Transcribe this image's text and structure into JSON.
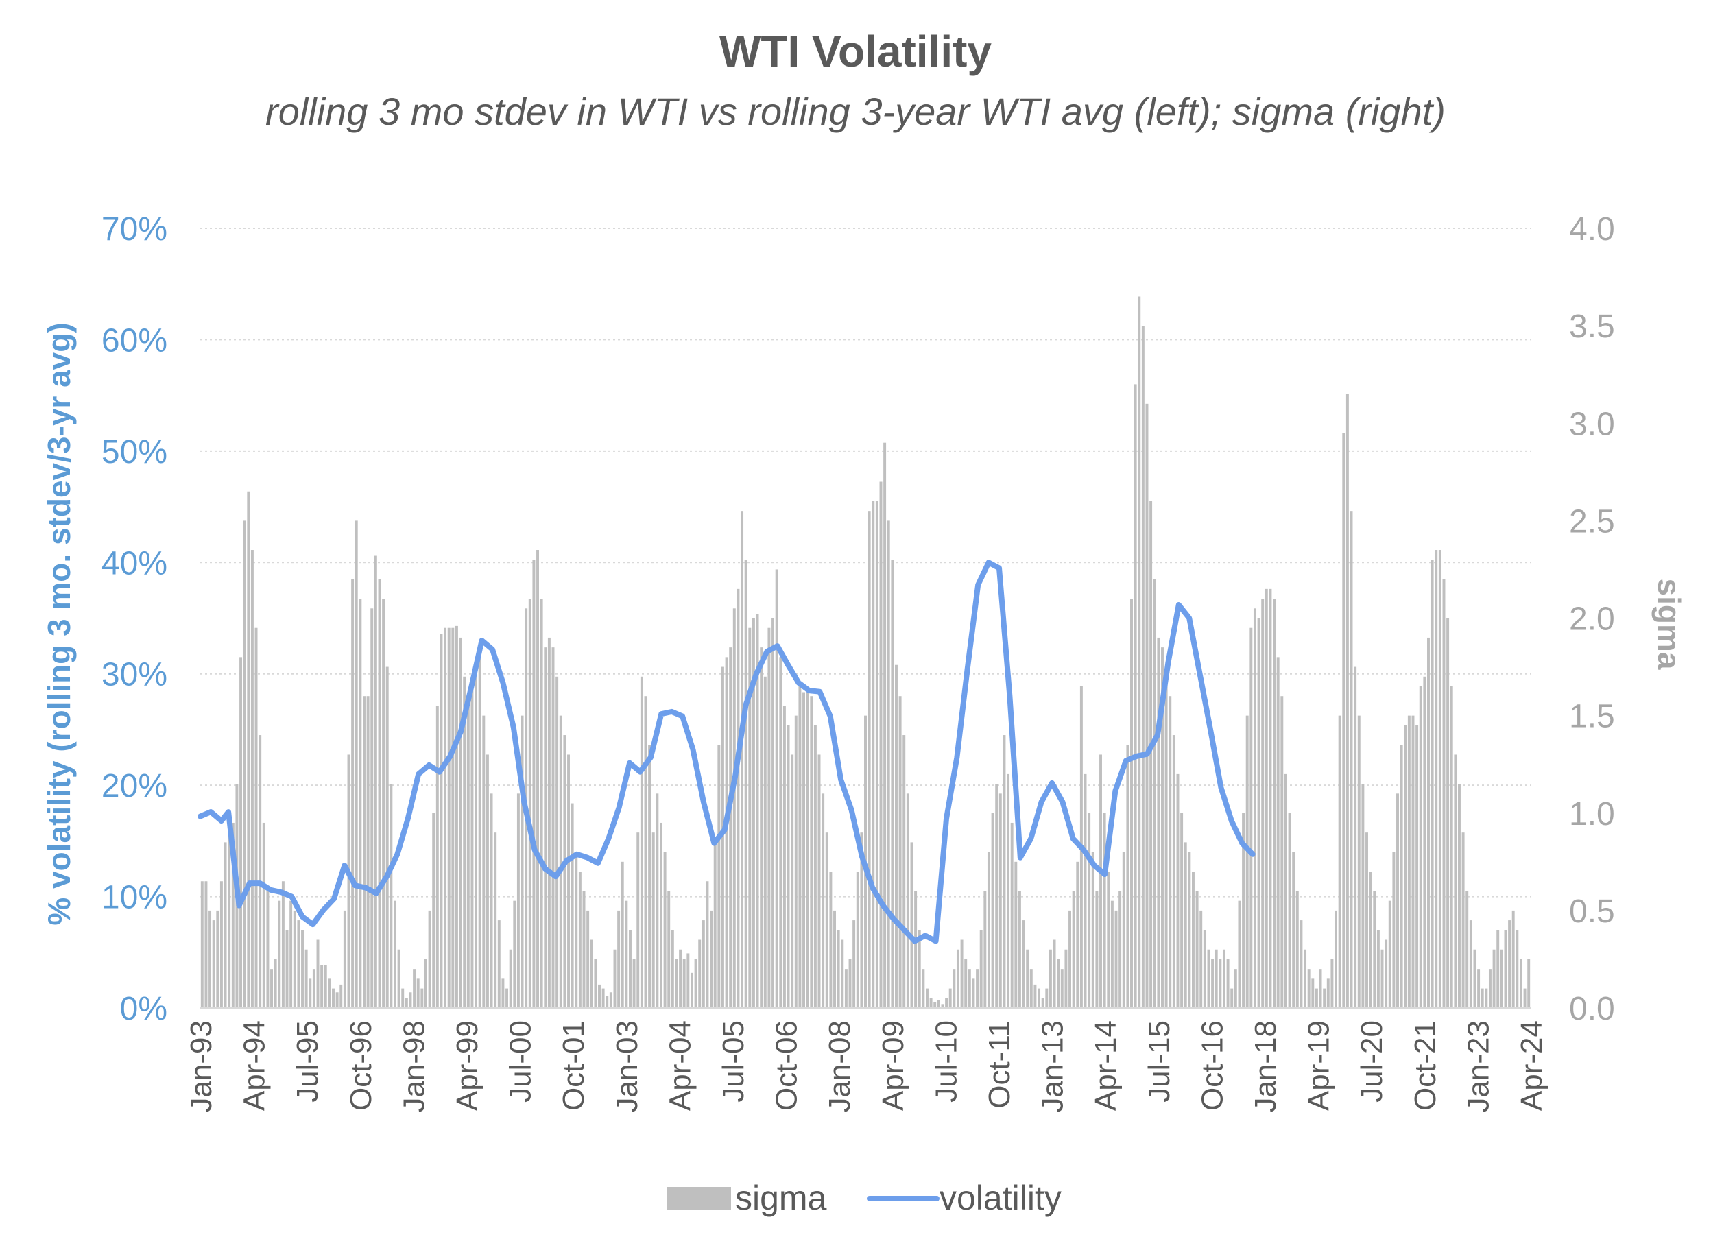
{
  "chart_data": {
    "type": "bar+line",
    "title": "WTI Volatility",
    "subtitle": "rolling 3 mo stdev in WTI vs rolling 3-year WTI avg (left); sigma (right)",
    "ylabel_left": "% volatility (rolling 3 mo. stdev/3-yr avg)",
    "ylabel_right": "sigma",
    "ylim_left": [
      0,
      0.7
    ],
    "ylim_right": [
      0,
      4.0
    ],
    "yticks_left": [
      "0%",
      "10%",
      "20%",
      "30%",
      "40%",
      "50%",
      "60%",
      "70%"
    ],
    "yticks_right": [
      "0.0",
      "0.5",
      "1.0",
      "1.5",
      "2.0",
      "2.5",
      "3.0",
      "3.5",
      "4.0"
    ],
    "x_start": "1993-01",
    "x_end": "2024-07",
    "xticks": [
      "Jan-93",
      "Apr-94",
      "Jul-95",
      "Oct-96",
      "Jan-98",
      "Apr-99",
      "Jul-00",
      "Oct-01",
      "Jan-03",
      "Apr-04",
      "Jul-05",
      "Oct-06",
      "Jan-08",
      "Apr-09",
      "Jul-10",
      "Oct-11",
      "Jan-13",
      "Apr-14",
      "Jul-15",
      "Oct-16",
      "Jan-18",
      "Apr-19",
      "Jul-20",
      "Oct-21",
      "Jan-23",
      "Apr-24"
    ],
    "grid": true,
    "legend_position": "bottom",
    "colors": {
      "sigma": "#bfbfbf",
      "volatility": "#6d9eeb",
      "left_axis": "#5b9bd5",
      "right_axis": "#a6a6a6",
      "title": "#595959"
    },
    "series": [
      {
        "name": "volatility",
        "type": "line",
        "axis": "left",
        "points": [
          [
            "1993-01",
            0.172
          ],
          [
            "1993-04",
            0.176
          ],
          [
            "1993-07",
            0.168
          ],
          [
            "1993-09",
            0.176
          ],
          [
            "1993-12",
            0.092
          ],
          [
            "1994-03",
            0.112
          ],
          [
            "1994-06",
            0.112
          ],
          [
            "1994-09",
            0.106
          ],
          [
            "1994-12",
            0.104
          ],
          [
            "1995-03",
            0.1
          ],
          [
            "1995-06",
            0.082
          ],
          [
            "1995-09",
            0.075
          ],
          [
            "1995-12",
            0.088
          ],
          [
            "1996-03",
            0.098
          ],
          [
            "1996-06",
            0.128
          ],
          [
            "1996-09",
            0.11
          ],
          [
            "1996-12",
            0.108
          ],
          [
            "1997-03",
            0.103
          ],
          [
            "1997-06",
            0.118
          ],
          [
            "1997-09",
            0.138
          ],
          [
            "1997-12",
            0.17
          ],
          [
            "1998-03",
            0.21
          ],
          [
            "1998-06",
            0.218
          ],
          [
            "1998-09",
            0.212
          ],
          [
            "1998-12",
            0.226
          ],
          [
            "1999-03",
            0.248
          ],
          [
            "1999-06",
            0.288
          ],
          [
            "1999-09",
            0.33
          ],
          [
            "1999-12",
            0.322
          ],
          [
            "2000-03",
            0.292
          ],
          [
            "2000-06",
            0.252
          ],
          [
            "2000-09",
            0.185
          ],
          [
            "2000-12",
            0.142
          ],
          [
            "2001-03",
            0.125
          ],
          [
            "2001-06",
            0.118
          ],
          [
            "2001-09",
            0.132
          ],
          [
            "2001-12",
            0.138
          ],
          [
            "2002-03",
            0.135
          ],
          [
            "2002-06",
            0.13
          ],
          [
            "2002-09",
            0.152
          ],
          [
            "2002-12",
            0.18
          ],
          [
            "2003-03",
            0.22
          ],
          [
            "2003-06",
            0.212
          ],
          [
            "2003-09",
            0.225
          ],
          [
            "2003-12",
            0.264
          ],
          [
            "2004-03",
            0.266
          ],
          [
            "2004-06",
            0.262
          ],
          [
            "2004-09",
            0.232
          ],
          [
            "2004-12",
            0.185
          ],
          [
            "2005-03",
            0.148
          ],
          [
            "2005-06",
            0.16
          ],
          [
            "2005-09",
            0.208
          ],
          [
            "2005-12",
            0.272
          ],
          [
            "2006-03",
            0.3
          ],
          [
            "2006-06",
            0.32
          ],
          [
            "2006-09",
            0.325
          ],
          [
            "2006-12",
            0.308
          ],
          [
            "2007-03",
            0.292
          ],
          [
            "2007-06",
            0.285
          ],
          [
            "2007-09",
            0.284
          ],
          [
            "2007-12",
            0.262
          ],
          [
            "2008-03",
            0.205
          ],
          [
            "2008-06",
            0.178
          ],
          [
            "2008-09",
            0.136
          ],
          [
            "2008-12",
            0.108
          ],
          [
            "2009-03",
            0.092
          ],
          [
            "2009-06",
            0.08
          ],
          [
            "2009-09",
            0.07
          ],
          [
            "2009-12",
            0.06
          ],
          [
            "2010-03",
            0.065
          ],
          [
            "2010-06",
            0.06
          ],
          [
            "2010-09",
            0.17
          ],
          [
            "2010-12",
            0.225
          ],
          [
            "2011-03",
            0.305
          ],
          [
            "2011-06",
            0.38
          ],
          [
            "2011-09",
            0.4
          ],
          [
            "2011-12",
            0.395
          ],
          [
            "2012-03",
            0.28
          ],
          [
            "2012-06",
            0.135
          ],
          [
            "2012-09",
            0.152
          ],
          [
            "2012-12",
            0.185
          ],
          [
            "2013-03",
            0.202
          ],
          [
            "2013-06",
            0.185
          ],
          [
            "2013-09",
            0.152
          ],
          [
            "2013-12",
            0.142
          ],
          [
            "2014-03",
            0.128
          ],
          [
            "2014-06",
            0.12
          ],
          [
            "2014-09",
            0.195
          ],
          [
            "2014-12",
            0.222
          ],
          [
            "2015-03",
            0.226
          ],
          [
            "2015-06",
            0.228
          ],
          [
            "2015-09",
            0.245
          ],
          [
            "2015-12",
            0.31
          ],
          [
            "2016-03",
            0.362
          ],
          [
            "2016-06",
            0.35
          ],
          [
            "2016-09",
            0.3
          ],
          [
            "2016-12",
            0.25
          ],
          [
            "2017-03",
            0.198
          ],
          [
            "2017-06",
            0.168
          ],
          [
            "2017-09",
            0.148
          ],
          [
            "2017-12",
            0.138
          ]
        ]
      },
      {
        "name": "sigma",
        "type": "bar",
        "axis": "right",
        "values": [
          0.65,
          0.65,
          0.5,
          0.45,
          0.5,
          0.65,
          0.85,
          0.9,
          0.95,
          1.15,
          1.8,
          2.5,
          2.65,
          2.35,
          1.95,
          1.4,
          0.95,
          0.6,
          0.2,
          0.25,
          0.55,
          0.65,
          0.4,
          0.55,
          0.5,
          0.45,
          0.4,
          0.3,
          0.15,
          0.2,
          0.35,
          0.22,
          0.22,
          0.15,
          0.1,
          0.08,
          0.12,
          0.5,
          1.3,
          2.2,
          2.5,
          2.1,
          1.6,
          1.6,
          2.05,
          2.32,
          2.2,
          2.1,
          1.75,
          1.15,
          0.55,
          0.3,
          0.1,
          0.05,
          0.08,
          0.2,
          0.15,
          0.1,
          0.25,
          0.5,
          1.0,
          1.55,
          1.92,
          1.95,
          1.95,
          1.95,
          1.96,
          1.9,
          1.7,
          1.6,
          1.65,
          1.75,
          1.8,
          1.5,
          1.3,
          1.1,
          0.9,
          0.45,
          0.15,
          0.1,
          0.3,
          0.55,
          1.1,
          1.5,
          2.05,
          2.1,
          2.3,
          2.35,
          2.1,
          1.85,
          1.9,
          1.85,
          1.7,
          1.5,
          1.4,
          1.3,
          1.05,
          0.8,
          0.7,
          0.6,
          0.5,
          0.35,
          0.25,
          0.12,
          0.1,
          0.06,
          0.08,
          0.3,
          0.5,
          0.75,
          0.55,
          0.4,
          0.25,
          0.9,
          1.7,
          1.6,
          1.35,
          0.9,
          1.1,
          0.95,
          0.8,
          0.6,
          0.4,
          0.25,
          0.3,
          0.25,
          0.28,
          0.18,
          0.25,
          0.35,
          0.45,
          0.65,
          0.5,
          0.85,
          1.35,
          1.75,
          1.8,
          1.85,
          2.05,
          2.15,
          2.55,
          2.3,
          1.95,
          2.0,
          2.02,
          1.85,
          1.7,
          1.95,
          2.0,
          2.25,
          1.8,
          1.55,
          1.45,
          1.3,
          1.5,
          1.65,
          1.62,
          1.62,
          1.6,
          1.45,
          1.3,
          1.1,
          0.9,
          0.7,
          0.5,
          0.4,
          0.35,
          0.2,
          0.25,
          0.45,
          0.7,
          0.9,
          1.5,
          2.55,
          2.6,
          2.6,
          2.7,
          2.9,
          2.5,
          2.3,
          1.76,
          1.6,
          1.4,
          1.1,
          0.85,
          0.6,
          0.4,
          0.2,
          0.1,
          0.05,
          0.03,
          0.04,
          0.02,
          0.05,
          0.1,
          0.2,
          0.3,
          0.35,
          0.25,
          0.2,
          0.15,
          0.2,
          0.4,
          0.6,
          0.8,
          1.0,
          1.15,
          1.1,
          1.4,
          1.2,
          0.95,
          0.75,
          0.6,
          0.45,
          0.3,
          0.2,
          0.12,
          0.1,
          0.05,
          0.1,
          0.3,
          0.35,
          0.25,
          0.2,
          0.3,
          0.5,
          0.6,
          0.75,
          1.65,
          1.2,
          1.0,
          0.8,
          0.6,
          1.3,
          1.0,
          0.7,
          0.55,
          0.5,
          0.6,
          0.8,
          1.35,
          2.1,
          3.2,
          3.65,
          3.5,
          3.1,
          2.6,
          2.2,
          1.9,
          1.85,
          1.75,
          1.6,
          1.4,
          1.2,
          1.0,
          0.85,
          0.8,
          0.7,
          0.6,
          0.5,
          0.4,
          0.3,
          0.25,
          0.3,
          0.25,
          0.3,
          0.25,
          0.1,
          0.2,
          0.55,
          1.0,
          1.5,
          1.95,
          2.05,
          2.0,
          2.1,
          2.15,
          2.15,
          2.1,
          1.8,
          1.6,
          1.2,
          1.0,
          0.8,
          0.6,
          0.45,
          0.3,
          0.2,
          0.15,
          0.1,
          0.2,
          0.1,
          0.15,
          0.25,
          0.5,
          1.5,
          2.95,
          3.15,
          2.55,
          1.75,
          1.5,
          1.15,
          0.9,
          0.7,
          0.6,
          0.4,
          0.3,
          0.35,
          0.55,
          0.8,
          1.1,
          1.35,
          1.45,
          1.5,
          1.5,
          1.45,
          1.65,
          1.7,
          1.9,
          2.3,
          2.35,
          2.35,
          2.2,
          2.0,
          1.65,
          1.3,
          1.15,
          0.9,
          0.6,
          0.45,
          0.3,
          0.2,
          0.1,
          0.1,
          0.2,
          0.3,
          0.4,
          0.3,
          0.4,
          0.45,
          0.5,
          0.4,
          0.25,
          0.1,
          0.25
        ]
      }
    ]
  },
  "legend": [
    {
      "key": "sigma",
      "label": "sigma"
    },
    {
      "key": "volatility",
      "label": "volatility"
    }
  ]
}
